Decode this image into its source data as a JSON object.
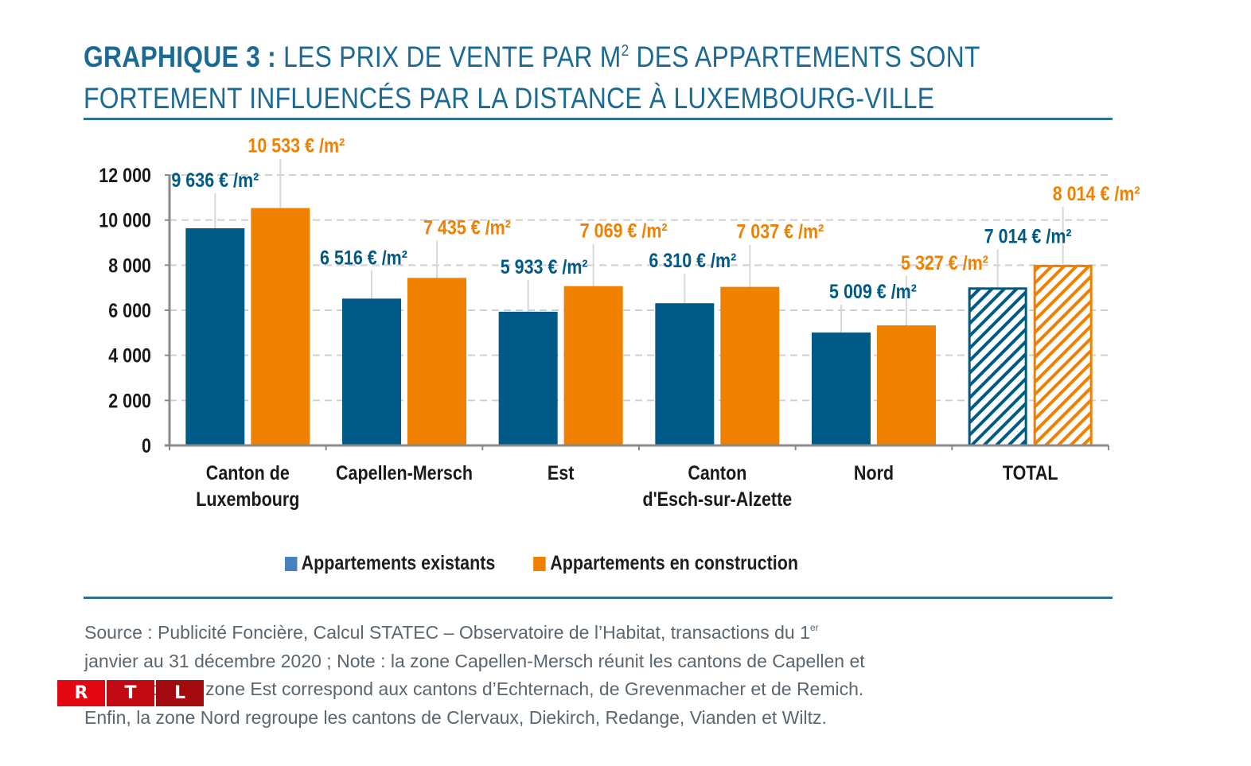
{
  "title": {
    "lead": "GRAPHIQUE 3 :",
    "line1_rest": "LES PRIX DE VENTE PAR M",
    "line1_sup": "2",
    "line1_end": "DES APPARTEMENTS SONT",
    "line2": "FORTEMENT INFLUENCÉS PAR LA DISTANCE À LUXEMBOURG-VILLE"
  },
  "colors": {
    "existing": "#005a87",
    "construction": "#f08000",
    "title": "#1b6a93",
    "legend_existing": "#4a80c0",
    "axis": "#8a8a8a",
    "grid": "#d0d0d0"
  },
  "chart_data": {
    "type": "bar",
    "title": "Les prix de vente par m² des appartements sont fortement influencés par la distance à Luxembourg-Ville",
    "xlabel": "",
    "ylabel": "",
    "ylim": [
      0,
      12000
    ],
    "yticks": [
      0,
      2000,
      4000,
      6000,
      8000,
      10000,
      12000
    ],
    "ytick_labels": [
      "0",
      "2 000",
      "4 000",
      "6 000",
      "8 000",
      "10 000",
      "12 000"
    ],
    "grid": true,
    "legend_position": "bottom",
    "categories": [
      [
        "Canton de",
        "Luxembourg"
      ],
      [
        "Capellen-Mersch"
      ],
      [
        "Est"
      ],
      [
        "Canton",
        "d'Esch-sur-Alzette"
      ],
      [
        "Nord"
      ],
      [
        "TOTAL"
      ]
    ],
    "series": [
      {
        "name": "Appartements existants",
        "values": [
          9636,
          6516,
          5933,
          6310,
          5009,
          7014
        ],
        "labels": [
          "9 636 € /m²",
          "6 516 € /m²",
          "5 933 € /m²",
          "6 310 € /m²",
          "5 009 € /m²",
          "7 014 € /m²"
        ]
      },
      {
        "name": "Appartements en construction",
        "values": [
          10533,
          7435,
          7069,
          7037,
          5327,
          8014
        ],
        "labels": [
          "10 533 € /m²",
          "7 435 € /m²",
          "7 069 € /m²",
          "7 037 € /m²",
          "5 327 € /m²",
          "8 014 € /m²"
        ]
      }
    ],
    "hatched_categories": [
      "TOTAL"
    ]
  },
  "legend": {
    "existing": "Appartements existants",
    "construction": "Appartements en construction"
  },
  "source": {
    "line1": "Source : Publicité Foncière, Calcul STATEC – Observatoire de l’Habitat, transactions du 1",
    "line1_sup": "er",
    "line2": "janvier au 31 décembre 2020 ; Note : la zone Capellen-Mersch réunit les cantons de Capellen et",
    "line3": "de Mersch. La zone Est correspond aux cantons d’Echternach, de Grevenmacher et de Remich.",
    "line4": "Enfin, la zone Nord regroupe les cantons de Clervaux, Diekirch, Redange, Vianden et Wiltz."
  },
  "logo": {
    "letters": [
      "R",
      "T",
      "L"
    ]
  }
}
